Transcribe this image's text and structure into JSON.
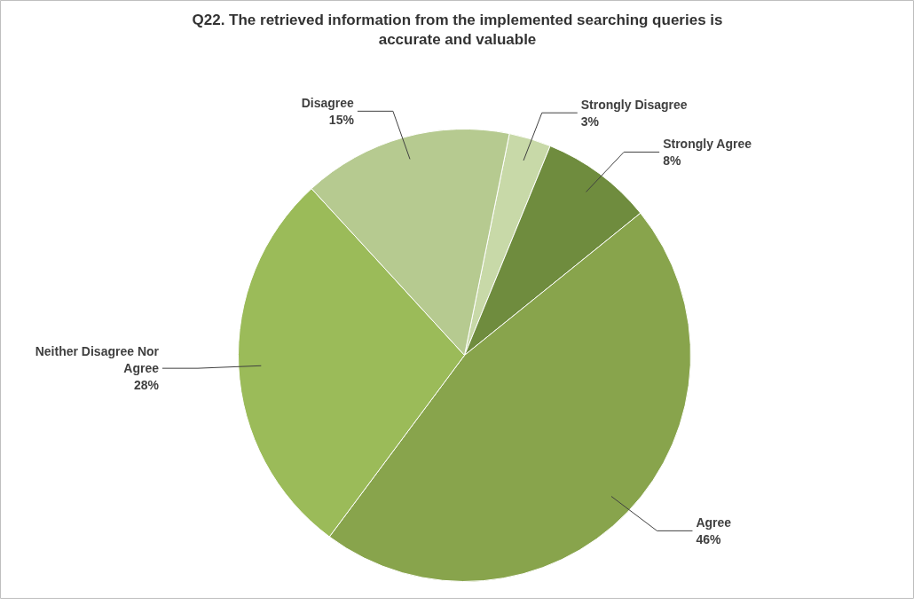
{
  "chart_data": {
    "type": "pie",
    "title": "Q22. The retrieved information from the implemented searching queries is accurate and valuable",
    "categories": [
      "Strongly Disagree",
      "Strongly Agree",
      "Agree",
      "Neither Disagree Nor Agree",
      "Disagree"
    ],
    "values": [
      3,
      8,
      46,
      28,
      15
    ],
    "colors": [
      "#c8d9a8",
      "#6f8c3e",
      "#88a44c",
      "#9bbb59",
      "#b6ca90"
    ],
    "value_labels": [
      "3%",
      "8%",
      "46%",
      "28%",
      "15%"
    ]
  }
}
